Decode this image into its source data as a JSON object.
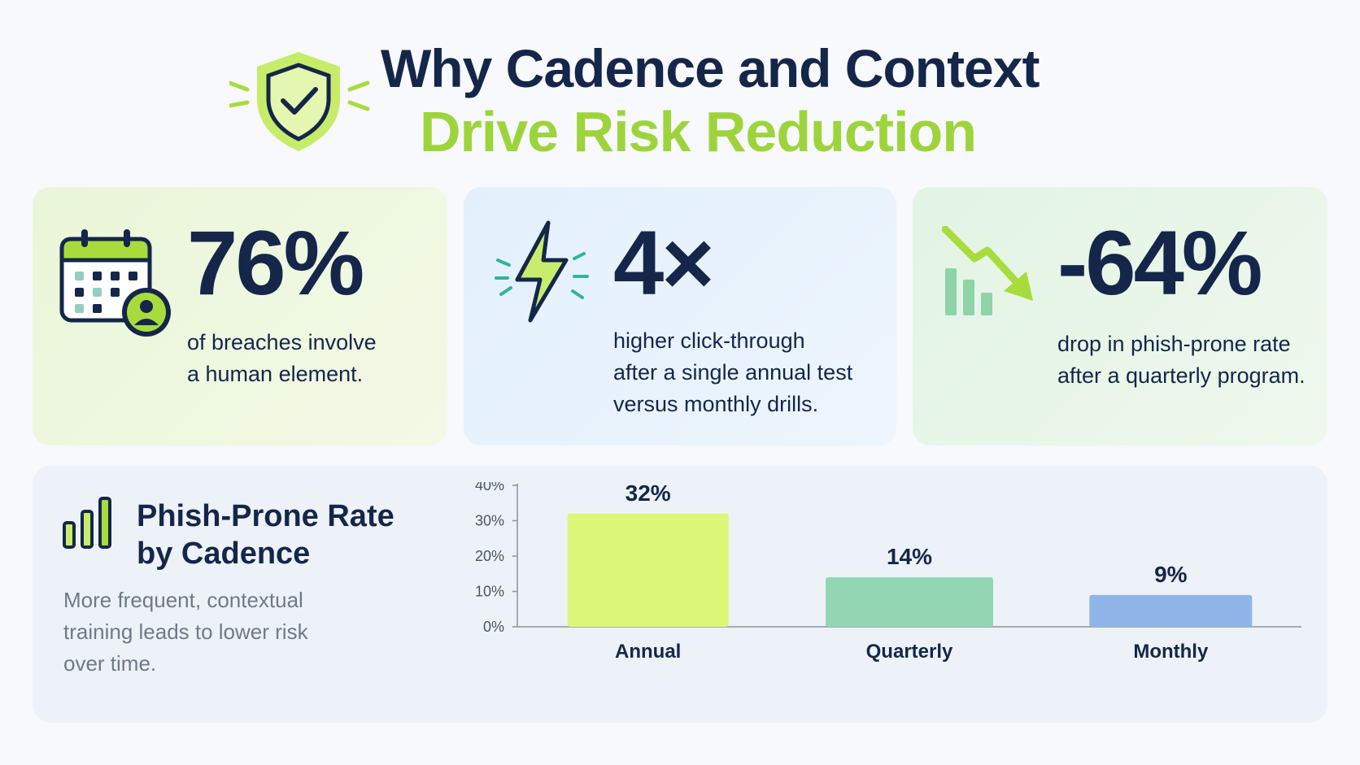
{
  "header": {
    "title_line1": "Why Cadence and Context",
    "title_line2": "Drive Risk Reduction",
    "icon": "shield-check-icon"
  },
  "stats": [
    {
      "icon": "calendar-user-icon",
      "value": "76%",
      "description": "of breaches involve\na human element."
    },
    {
      "icon": "lightning-bolt-icon",
      "value": "4×",
      "description": "higher click-through\nafter a single annual test\nversus monthly drills."
    },
    {
      "icon": "downtrend-chart-icon",
      "value": "-64%",
      "description": "drop in phish-prone rate\nafter a quarterly program."
    }
  ],
  "chart_panel": {
    "icon": "bar-chart-icon",
    "title": "Phish-Prone Rate by Cadence",
    "subtitle": "More frequent, contextual training leads to lower risk over time."
  },
  "colors": {
    "navy": "#15264a",
    "lime": "#9ed43b",
    "bar_annual": "#dcf777",
    "bar_quarterly": "#93d6b3",
    "bar_monthly": "#8fb5e8"
  },
  "chart_data": {
    "type": "bar",
    "title": "Phish-Prone Rate by Cadence",
    "categories": [
      "Annual",
      "Quarterly",
      "Monthly"
    ],
    "values": [
      32,
      14,
      9
    ],
    "data_labels": [
      "32%",
      "14%",
      "9%"
    ],
    "bar_colors": [
      "#dcf777",
      "#93d6b3",
      "#8fb5e8"
    ],
    "ylim": [
      0,
      40
    ],
    "yticks": [
      0,
      10,
      20,
      30,
      40
    ],
    "ytick_labels": [
      "0%",
      "10%",
      "20%",
      "30%",
      "40%"
    ],
    "xlabel": "",
    "ylabel": "",
    "grid": false,
    "legend": "none"
  }
}
